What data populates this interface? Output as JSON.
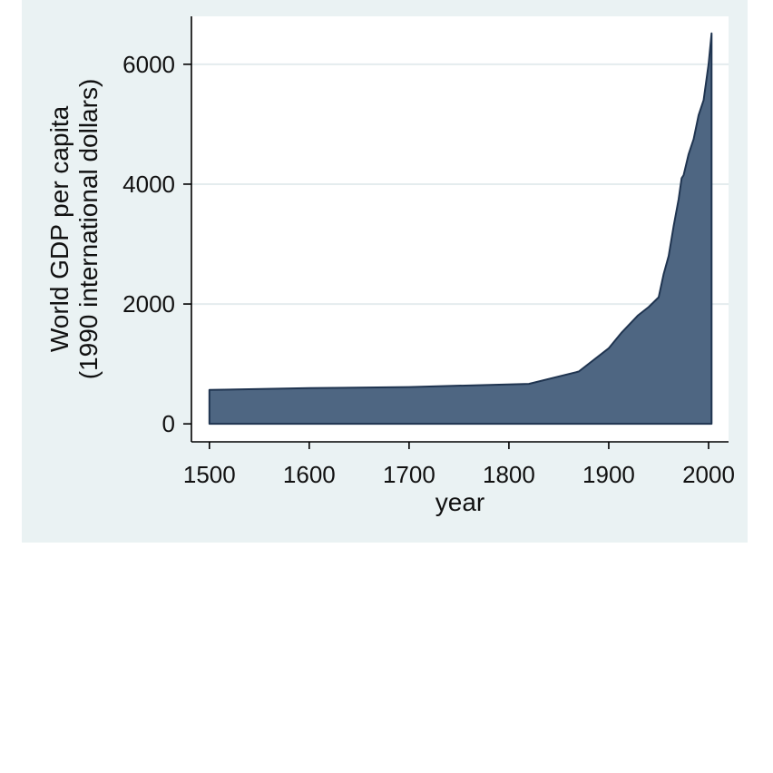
{
  "chart_data": {
    "type": "area",
    "title": "",
    "xlabel": "year",
    "ylabel_lines": [
      "World GDP per capita",
      "(1990 international dollars)"
    ],
    "xlim": [
      1482,
      2020
    ],
    "ylim": [
      -300,
      6800
    ],
    "xticks": [
      1500,
      1600,
      1700,
      1800,
      1900,
      2000
    ],
    "yticks": [
      0,
      2000,
      4000,
      6000
    ],
    "grid": true,
    "colors": {
      "fill": "#4e6682",
      "stroke": "#1f3450",
      "panel_background": "#eaf2f3",
      "plot_background": "#ffffff",
      "grid": "#e4ecee",
      "axis": "#000000"
    },
    "series": [
      {
        "x": [
          1500,
          1600,
          1700,
          1820,
          1870,
          1900,
          1913,
          1929,
          1940,
          1950,
          1955,
          1960,
          1965,
          1970,
          1973,
          1975,
          1980,
          1985,
          1990,
          1995,
          2000,
          2003
        ],
        "y": [
          566,
          596,
          615,
          667,
          873,
          1262,
          1526,
          1806,
          1950,
          2113,
          2500,
          2800,
          3300,
          3750,
          4100,
          4150,
          4500,
          4750,
          5150,
          5400,
          6000,
          6516
        ]
      }
    ]
  }
}
